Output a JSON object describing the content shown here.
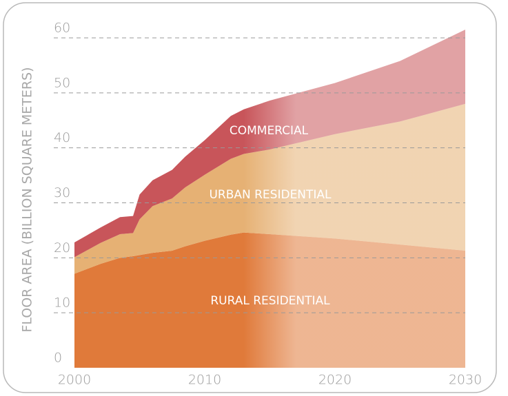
{
  "chart_data": {
    "type": "area",
    "stacked": true,
    "y_label": "FLOOR AREA (BILLION SQUARE METERS)",
    "x": [
      2000,
      2002,
      2003.5,
      2004.5,
      2005,
      2006,
      2007.5,
      2008.5,
      2010,
      2012,
      2013,
      2015,
      2020,
      2025,
      2030
    ],
    "series": [
      {
        "name": "RURAL RESIDENTIAL",
        "color": "#e07a3a",
        "values": [
          17.1,
          18.9,
          20.0,
          20.3,
          20.5,
          20.9,
          21.3,
          22.1,
          23.1,
          24.2,
          24.6,
          24.3,
          23.5,
          22.4,
          21.3
        ]
      },
      {
        "name": "URBAN RESIDENTIAL",
        "color": "#e6b174",
        "values": [
          3.0,
          3.8,
          4.3,
          4.2,
          6.5,
          8.5,
          9.5,
          10.7,
          12.0,
          13.8,
          14.3,
          15.4,
          19.0,
          22.4,
          26.7
        ]
      },
      {
        "name": "COMMERCIAL",
        "color": "#c8555a",
        "values": [
          2.7,
          2.8,
          3.1,
          3.1,
          4.5,
          4.7,
          5.2,
          5.6,
          6.3,
          7.8,
          8.1,
          8.9,
          9.3,
          11.0,
          13.5
        ]
      }
    ],
    "xlim": [
      2000,
      2030
    ],
    "xticks": [
      2000,
      2010,
      2020,
      2030
    ],
    "ylim": [
      0,
      60
    ],
    "yticks": [
      0,
      10,
      20,
      30,
      40,
      50,
      60
    ],
    "grid": true
  }
}
